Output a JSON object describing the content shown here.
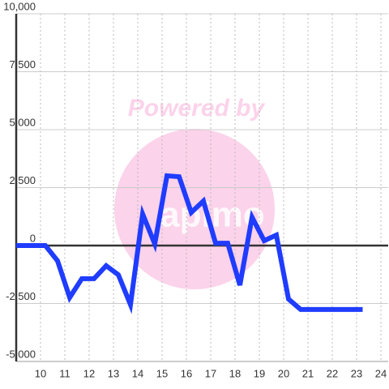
{
  "chart_data": {
    "type": "line",
    "watermark": "Powered by",
    "watermark_logo": "apimo",
    "x": [
      9,
      10.2,
      10.7,
      11.2,
      11.7,
      12.2,
      12.7,
      13.2,
      13.7,
      14.2,
      14.7,
      15.2,
      15.7,
      16.2,
      16.7,
      17.2,
      17.7,
      18.2,
      18.7,
      19.2,
      19.7,
      20.2,
      20.7,
      21.2,
      21.7,
      22.2,
      22.7,
      23.25
    ],
    "series": [
      {
        "color": "#1f3cff",
        "values": [
          0,
          0,
          -660,
          -2240,
          -1430,
          -1430,
          -870,
          -1260,
          -2550,
          1360,
          70,
          3010,
          2970,
          1430,
          1920,
          100,
          100,
          -1710,
          1220,
          210,
          450,
          -2310,
          -2760,
          -2760,
          -2760,
          -2760,
          -2760,
          -2760
        ]
      }
    ],
    "xlim": [
      9,
      24.3
    ],
    "xticks": [
      10,
      11,
      12,
      13,
      14,
      15,
      16,
      17,
      18,
      19,
      20,
      21,
      22,
      23,
      24
    ],
    "ylim": [
      -5000,
      10000
    ],
    "yticks": [
      {
        "value": -5000,
        "label": "-5,000"
      },
      {
        "value": -2500,
        "label": "-2,500"
      },
      0,
      {
        "value": 2500,
        "label": "2,500"
      },
      {
        "value": 5000,
        "label": "5,000"
      },
      {
        "value": 7500,
        "label": "7,500"
      },
      {
        "value": 10000,
        "label": "10,000"
      }
    ],
    "grid": true
  }
}
